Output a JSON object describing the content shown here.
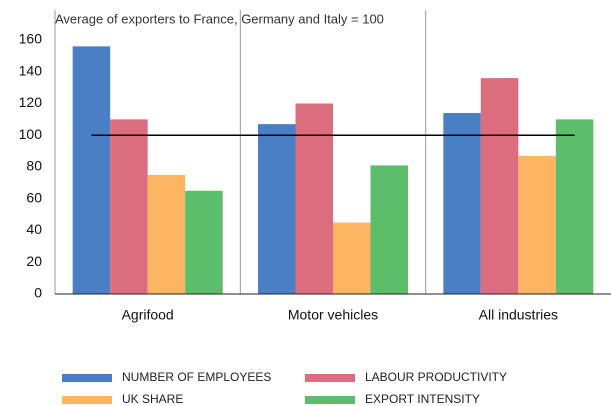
{
  "chart_data": {
    "type": "bar",
    "subtitle": "Average of exporters to France, Germany and Italy = 100",
    "categories": [
      "Agrifood",
      "Motor vehicles",
      "All industries"
    ],
    "series": [
      {
        "name": "NUMBER OF EMPLOYEES",
        "color": "#4a7fc5",
        "values": [
          156,
          107,
          114
        ]
      },
      {
        "name": "LABOUR PRODUCTIVITY",
        "color": "#dc6d7e",
        "values": [
          110,
          120,
          136
        ]
      },
      {
        "name": "UK SHARE",
        "color": "#fdb562",
        "values": [
          75,
          45,
          87
        ]
      },
      {
        "name": "EXPORT INTENSITY",
        "color": "#5cbd6b",
        "values": [
          65,
          81,
          110
        ]
      }
    ],
    "reference_value": 100,
    "ylim": [
      0,
      160
    ],
    "yticks": [
      0,
      20,
      40,
      60,
      80,
      100,
      120,
      140,
      160
    ],
    "grid": false
  }
}
